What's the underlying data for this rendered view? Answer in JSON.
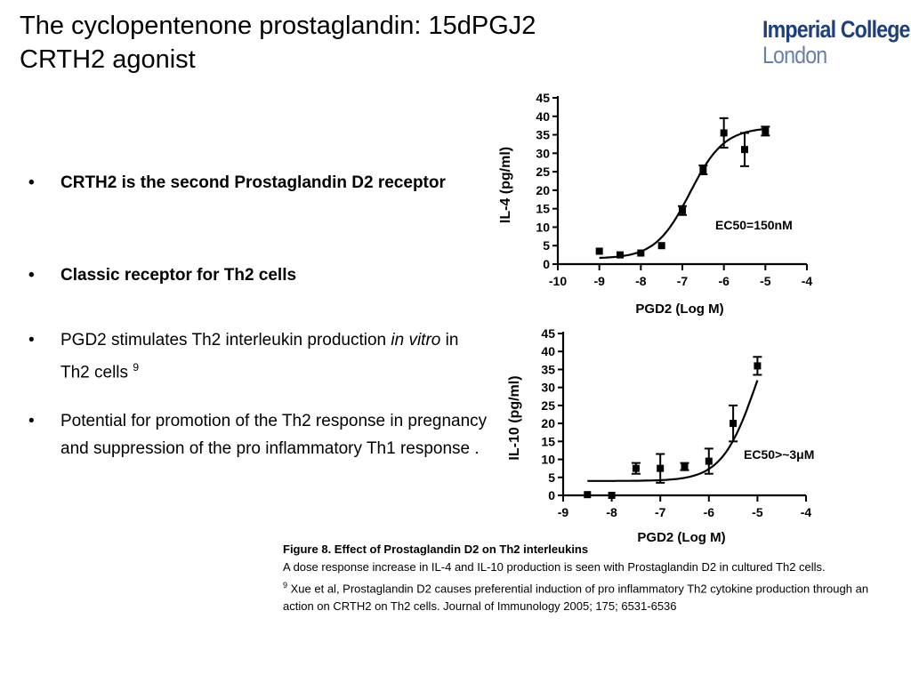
{
  "slide": {
    "title_line1": "The cyclopentenone prostaglandin: 15dPGJ2",
    "title_line2": "CRTH2 agonist",
    "logo_line1": "Imperial College",
    "logo_line2": "London",
    "logo_color": "#1f3f7a"
  },
  "bullets": [
    {
      "text": "CRTH2 is the second Prostaglandin D2 receptor",
      "bold": true
    },
    {
      "text": "Classic receptor for Th2 cells",
      "bold": true
    },
    {
      "pre": "PGD2 stimulates Th2 interleukin production ",
      "italic": "in vitro",
      "post": " in Th2 cells ",
      "sup": "9",
      "bold": false
    },
    {
      "text": "Potential for promotion of the Th2 response in pregnancy and suppression of the pro inflammatory Th1 response .",
      "bold": false
    }
  ],
  "bullet_symbol": "•",
  "caption": {
    "title": "Figure  8.  Effect of Prostaglandin D2 on Th2 interleukins",
    "line1": "A dose response increase in IL-4 and IL-10 production is seen with Prostaglandin D2 in cultured Th2 cells.",
    "ref_sup": "9",
    "ref": " Xue et al, Prostaglandin D2 causes preferential induction of pro inflammatory Th2 cytokine production through an action on CRTH2 on Th2 cells. Journal of Immunology 2005; 175; 6531-6536"
  },
  "chart_data": [
    {
      "type": "scatter",
      "title": "",
      "xlabel": "PGD2 (Log M)",
      "ylabel": "IL-4 (pg/ml)",
      "xlim": [
        -10,
        -4
      ],
      "ylim": [
        0,
        45
      ],
      "xticks": [
        -10,
        -9,
        -8,
        -7,
        -6,
        -5,
        -4
      ],
      "yticks": [
        0,
        5,
        10,
        15,
        20,
        25,
        30,
        35,
        40,
        45
      ],
      "annotation": "EC50=150nM",
      "points": [
        {
          "x": -9.0,
          "y": 3.5,
          "err": 0
        },
        {
          "x": -8.5,
          "y": 2.5,
          "err": 0
        },
        {
          "x": -8.0,
          "y": 3.0,
          "err": 0
        },
        {
          "x": -7.5,
          "y": 5.0,
          "err": 0
        },
        {
          "x": -7.0,
          "y": 14.5,
          "err": 1.2
        },
        {
          "x": -6.5,
          "y": 25.5,
          "err": 1.2
        },
        {
          "x": -6.0,
          "y": 35.5,
          "err": 4.0
        },
        {
          "x": -5.5,
          "y": 31.0,
          "err": 4.5
        },
        {
          "x": -5.0,
          "y": 36.0,
          "err": 1.2
        }
      ],
      "fit": {
        "bottom": 1.5,
        "top": 37.0,
        "logEC50": -6.82,
        "hill": 1.05,
        "x_range": [
          -9.0,
          -5.0
        ]
      }
    },
    {
      "type": "scatter",
      "title": "",
      "xlabel": "PGD2 (Log M)",
      "ylabel": "IL-10 (pg/ml)",
      "xlim": [
        -9,
        -4
      ],
      "ylim": [
        0,
        45
      ],
      "xticks": [
        -9,
        -8,
        -7,
        -6,
        -5,
        -4
      ],
      "yticks": [
        0,
        5,
        10,
        15,
        20,
        25,
        30,
        35,
        40,
        45
      ],
      "annotation": "EC50>~3μM",
      "points": [
        {
          "x": -8.5,
          "y": 0.2,
          "err": 0
        },
        {
          "x": -8.0,
          "y": 0.0,
          "err": 0
        },
        {
          "x": -7.5,
          "y": 7.5,
          "err": 1.5
        },
        {
          "x": -7.0,
          "y": 7.5,
          "err": 4.0
        },
        {
          "x": -6.5,
          "y": 8.0,
          "err": 1.0
        },
        {
          "x": -6.0,
          "y": 9.5,
          "err": 3.5
        },
        {
          "x": -5.5,
          "y": 20.0,
          "err": 5.0
        },
        {
          "x": -5.0,
          "y": 36.0,
          "err": 2.5
        }
      ],
      "fit": {
        "bottom": 4.0,
        "top": 60.0,
        "logEC50": -5.0,
        "hill": 1.2,
        "x_range": [
          -8.5,
          -5.0
        ]
      }
    }
  ]
}
